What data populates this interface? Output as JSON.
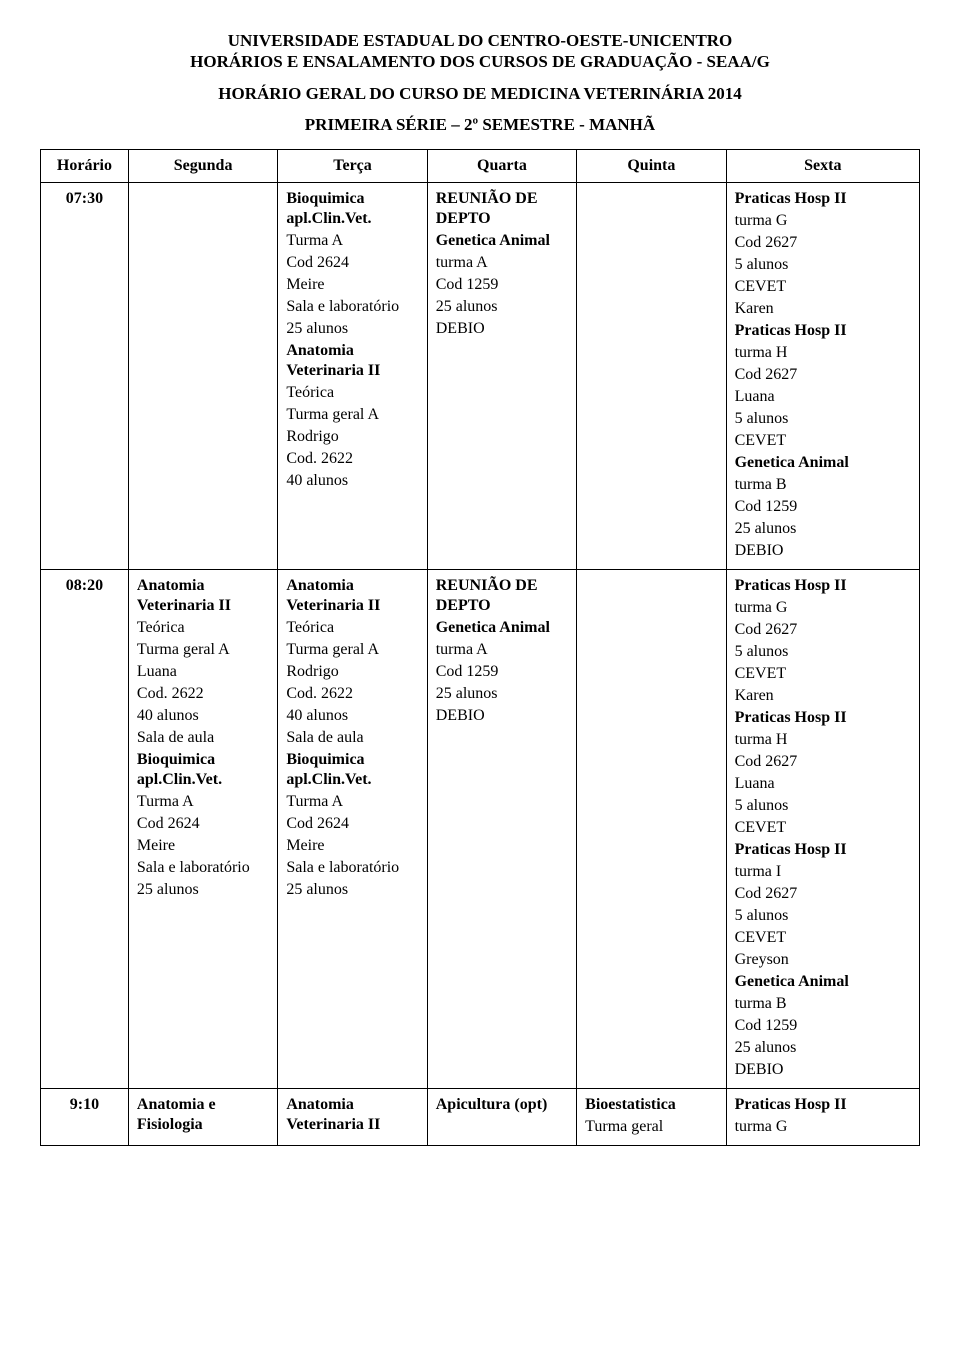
{
  "header": {
    "line1": "UNIVERSIDADE ESTADUAL DO CENTRO-OESTE-UNICENTRO",
    "line2": "HORÁRIOS E ENSALAMENTO DOS CURSOS DE GRADUAÇÃO - SEAA/G",
    "line3": "HORÁRIO GERAL DO CURSO DE MEDICINA VETERINÁRIA 2014",
    "line4": "PRIMEIRA SÉRIE – 2º SEMESTRE -  MANHÃ"
  },
  "columns": {
    "horario": "Horário",
    "segunda": "Segunda",
    "terca": "Terça",
    "quarta": "Quarta",
    "quinta": "Quinta",
    "sexta": "Sexta"
  },
  "row1": {
    "time": "07:30",
    "terca": {
      "bioq_title": "Bioquimica apl.Clin.Vet.",
      "bioq_l1": "Turma A",
      "bioq_l2": "Cod 2624",
      "bioq_l3": "Meire",
      "bioq_l4": "Sala e laboratório",
      "bioq_l5": "25 alunos",
      "anat_title": "Anatomia Veterinaria II",
      "anat_l1": "Teórica",
      "anat_l2": "Turma geral A",
      "anat_l3": "Rodrigo",
      "anat_l4": "Cod. 2622",
      "anat_l5": "40 alunos"
    },
    "quarta": {
      "reu_title": "REUNIÃO DE DEPTO",
      "gen_title": "Genetica Animal",
      "gen_l1": "turma A",
      "gen_l2": "Cod 1259",
      "gen_l3": "25 alunos",
      "gen_l4": "DEBIO"
    },
    "sexta": {
      "p1_title": "Praticas Hosp II",
      "p1_l1": "turma G",
      "p1_l2": "Cod 2627",
      "p1_l3": "5 alunos",
      "p1_l4": "CEVET",
      "p1_l5": "Karen",
      "p2_title": "Praticas Hosp  II",
      "p2_l1": "turma H",
      "p2_l2": "Cod 2627",
      "p2_l3": "Luana",
      "p2_l4": "5 alunos",
      "p2_l5": "CEVET",
      "g_title": "Genetica Animal",
      "g_l1": "turma B",
      "g_l2": "Cod 1259",
      "g_l3": "25 alunos",
      "g_l4": "DEBIO"
    }
  },
  "row2": {
    "time": "08:20",
    "segunda": {
      "anat_title": "Anatomia Veterinaria II",
      "anat_l1": "Teórica",
      "anat_l2": "Turma geral A",
      "anat_l3": "Luana",
      "anat_l4": "Cod. 2622",
      "anat_l5": "40 alunos",
      "anat_l6": "Sala de aula",
      "bioq_title": "Bioquimica apl.Clin.Vet.",
      "bioq_l1": "Turma A",
      "bioq_l2": "Cod 2624",
      "bioq_l3": "Meire",
      "bioq_l4": "Sala e laboratório",
      "bioq_l5": "25 alunos"
    },
    "terca": {
      "anat_title": "Anatomia Veterinaria II",
      "anat_l1": "Teórica",
      "anat_l2": "Turma geral A",
      "anat_l3": "Rodrigo",
      "anat_l4": "Cod. 2622",
      "anat_l5": "40 alunos",
      "anat_l6": "Sala de aula",
      "bioq_title": "Bioquimica apl.Clin.Vet.",
      "bioq_l1": "Turma A",
      "bioq_l2": "Cod 2624",
      "bioq_l3": "Meire",
      "bioq_l4": "Sala e laboratório",
      "bioq_l5": "25 alunos"
    },
    "quarta": {
      "reu_title": "REUNIÃO DE DEPTO",
      "gen_title": "Genetica Animal",
      "gen_l1": "turma A",
      "gen_l2": "Cod 1259",
      "gen_l3": "25 alunos",
      "gen_l4": "DEBIO"
    },
    "sexta": {
      "p1_title": "Praticas Hosp II",
      "p1_l1": "turma G",
      "p1_l2": "Cod 2627",
      "p1_l3": "5 alunos",
      "p1_l4": "CEVET",
      "p1_l5": "Karen",
      "p2_title": "Praticas Hosp  II",
      "p2_l1": "turma H",
      "p2_l2": "Cod 2627",
      "p2_l3": "Luana",
      "p2_l4": "5 alunos",
      "p2_l5": "CEVET",
      "p3_title": "Praticas Hosp II",
      "p3_l1": "turma I",
      "p3_l2": "Cod 2627",
      "p3_l3": "5 alunos",
      "p3_l4": "CEVET",
      "p3_l5": "Greyson",
      "g_title": "Genetica Animal",
      "g_l1": "turma B",
      "g_l2": "Cod 1259",
      "g_l3": "25 alunos",
      "g_l4": "DEBIO"
    }
  },
  "row3": {
    "time": "9:10",
    "segunda": {
      "t1": "Anatomia e Fisiologia"
    },
    "terca": {
      "t1": "Anatomia Veterinaria II"
    },
    "quarta": {
      "t1": "Apicultura (opt)"
    },
    "quinta": {
      "t1": "Bioestatistica",
      "t2": "Turma geral"
    },
    "sexta": {
      "t1": "Praticas Hosp II",
      "t2": "turma G"
    }
  }
}
